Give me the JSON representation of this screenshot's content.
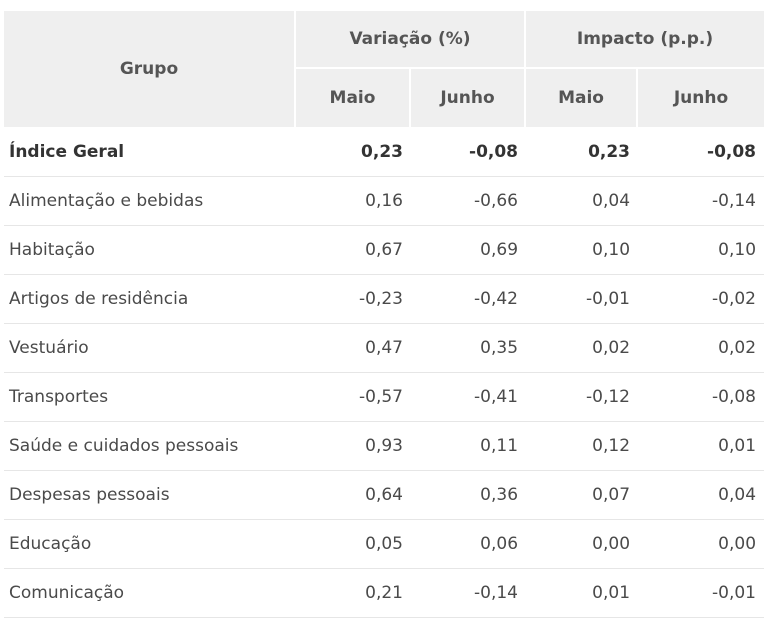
{
  "headers": {
    "grupo": "Grupo",
    "variacao": "Variação (%)",
    "impacto": "Impacto (p.p.)",
    "maio": "Maio",
    "junho": "Junho"
  },
  "rows": [
    {
      "grupo": "Índice Geral",
      "var_maio": "0,23",
      "var_junho": "-0,08",
      "imp_maio": "0,23",
      "imp_junho": "-0,08"
    },
    {
      "grupo": "Alimentação e bebidas",
      "var_maio": "0,16",
      "var_junho": "-0,66",
      "imp_maio": "0,04",
      "imp_junho": "-0,14"
    },
    {
      "grupo": "Habitação",
      "var_maio": "0,67",
      "var_junho": "0,69",
      "imp_maio": "0,10",
      "imp_junho": "0,10"
    },
    {
      "grupo": "Artigos de residência",
      "var_maio": "-0,23",
      "var_junho": "-0,42",
      "imp_maio": "-0,01",
      "imp_junho": "-0,02"
    },
    {
      "grupo": "Vestuário",
      "var_maio": "0,47",
      "var_junho": "0,35",
      "imp_maio": "0,02",
      "imp_junho": "0,02"
    },
    {
      "grupo": "Transportes",
      "var_maio": "-0,57",
      "var_junho": "-0,41",
      "imp_maio": "-0,12",
      "imp_junho": "-0,08"
    },
    {
      "grupo": "Saúde e cuidados pessoais",
      "var_maio": "0,93",
      "var_junho": "0,11",
      "imp_maio": "0,12",
      "imp_junho": "0,01"
    },
    {
      "grupo": "Despesas pessoais",
      "var_maio": "0,64",
      "var_junho": "0,36",
      "imp_maio": "0,07",
      "imp_junho": "0,04"
    },
    {
      "grupo": "Educação",
      "var_maio": "0,05",
      "var_junho": "0,06",
      "imp_maio": "0,00",
      "imp_junho": "0,00"
    },
    {
      "grupo": "Comunicação",
      "var_maio": "0,21",
      "var_junho": "-0,14",
      "imp_maio": "0,01",
      "imp_junho": "-0,01"
    }
  ]
}
